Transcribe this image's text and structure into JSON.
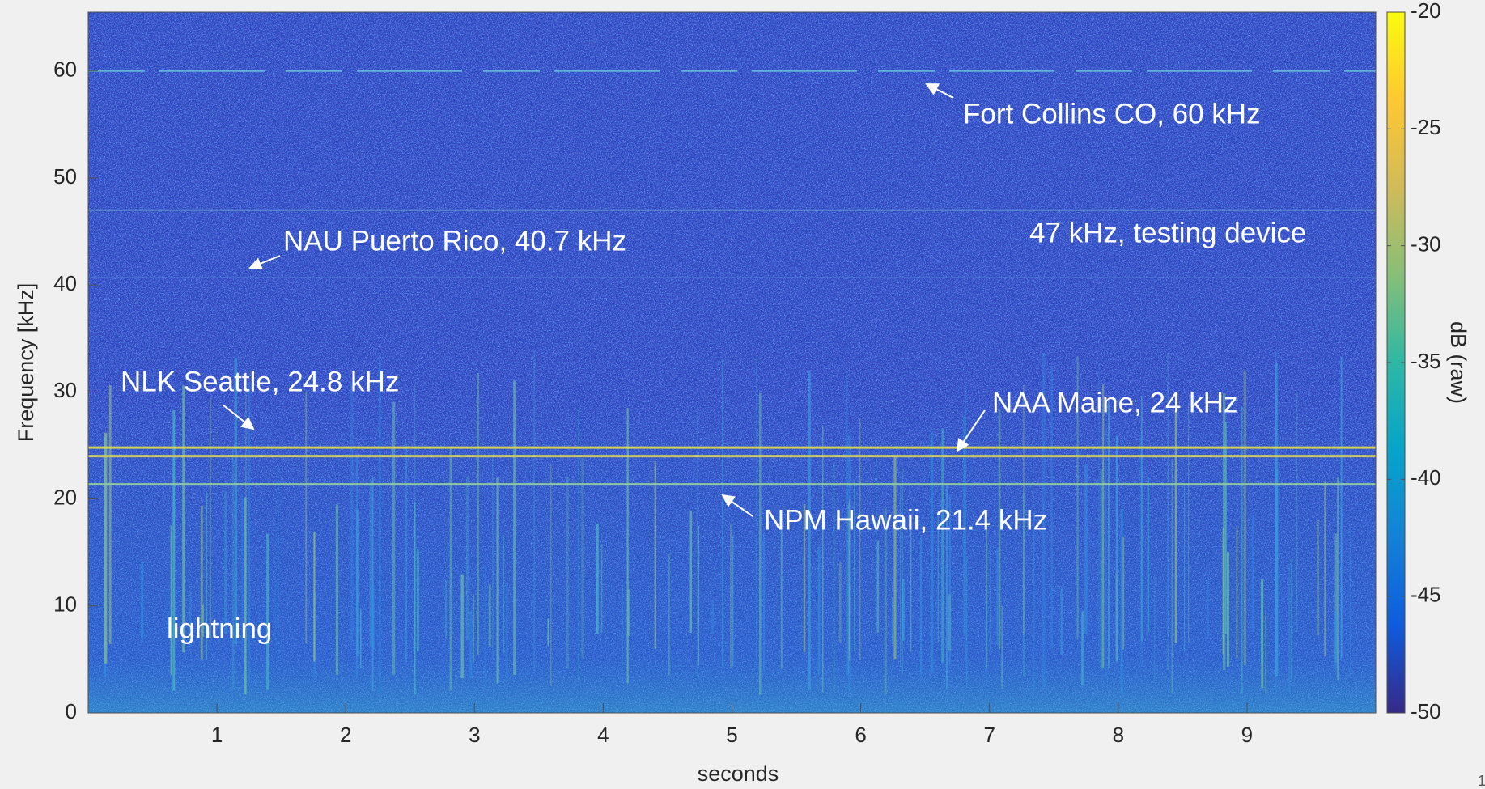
{
  "chart_data": {
    "type": "spectrogram",
    "xlabel": "seconds",
    "ylabel": "Frequency [kHz]",
    "xlim": [
      0,
      10
    ],
    "xticks": [
      1,
      2,
      3,
      4,
      5,
      6,
      7,
      8,
      9
    ],
    "ylim": [
      0,
      65.5
    ],
    "yticks": [
      0,
      10,
      20,
      30,
      40,
      50,
      60
    ],
    "colorbar": {
      "label": "dB (raw)",
      "lim": [
        -50,
        -20
      ],
      "ticks": [
        -50,
        -45,
        -40,
        -35,
        -30,
        -25,
        -20
      ],
      "colormap": [
        "#352a87",
        "#0f5cdd",
        "#1481d6",
        "#06a4ca",
        "#2eb7a4",
        "#87bf77",
        "#d1bb59",
        "#fec832",
        "#f9fb0e"
      ]
    },
    "annotations": [
      {
        "text": "Fort Collins CO, 60 kHz",
        "frequency": 60,
        "color": "#5fb4d8"
      },
      {
        "text": "47 kHz, testing device",
        "frequency": 47,
        "color": "#7fb8c8"
      },
      {
        "text": "NAU Puerto Rico, 40.7 kHz",
        "frequency": 40.7,
        "color": "#4a86d6"
      },
      {
        "text": "NLK Seattle, 24.8 kHz",
        "frequency": 24.8,
        "color": "#d6cf5a"
      },
      {
        "text": "NAA Maine, 24 kHz",
        "frequency": 24,
        "color": "#c9c866"
      },
      {
        "text": "NPM Hawaii, 21.4 kHz",
        "frequency": 21.4,
        "color": "#8ec6a0"
      },
      {
        "text": "lightning"
      }
    ],
    "page_number": "1"
  }
}
